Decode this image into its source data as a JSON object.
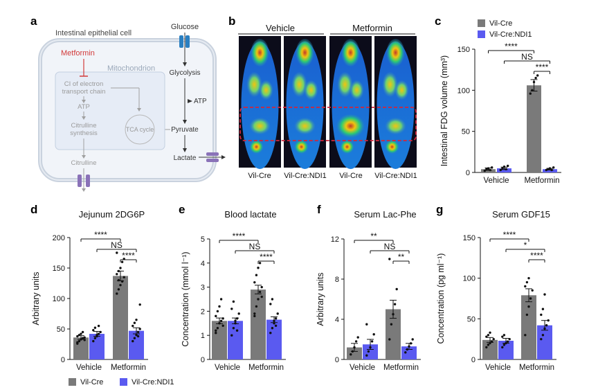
{
  "panel_labels": {
    "a": "a",
    "b": "b",
    "c": "c",
    "d": "d",
    "e": "e",
    "f": "f",
    "g": "g"
  },
  "colors": {
    "vil_cre": "#7a7a7a",
    "ndi1": "#5a5af0",
    "metformin_red": "#d23a3a",
    "schematic_grey": "#a0a0a0",
    "mito_fill": "#e6ecf6",
    "cell_fill": "#f1f4f9",
    "transporter_blue": "#2a7fc1",
    "transporter_purple": "#8a72b8"
  },
  "schematic": {
    "cell_label": "Intestinal epithelial cell",
    "glucose": "Glucose",
    "metformin": "Metformin",
    "mitochondrion": "Mitochondrion",
    "ci_line1": "CI of electron",
    "ci_line2": "transport chain",
    "atp_left": "ATP",
    "citrulline_syn_1": "Citrulline",
    "citrulline_syn_2": "synthesis",
    "citrulline": "Citrulline",
    "tca": "TCA cycle",
    "glycolysis": "Glycolysis",
    "atp_right": "ATP",
    "pyruvate": "Pyruvate",
    "lactate": "Lactate"
  },
  "pet": {
    "group_vehicle": "Vehicle",
    "group_metformin": "Metformin",
    "labels": [
      "Vil-Cre",
      "Vil-Cre:NDI1",
      "Vil-Cre",
      "Vil-Cre:NDI1"
    ]
  },
  "legend_top": [
    "Vil-Cre",
    "Vil-Cre:NDI1"
  ],
  "legend_bottom": [
    "Vil-Cre",
    "Vil-Cre:NDI1"
  ],
  "chart_data": [
    {
      "panel": "c",
      "type": "bar",
      "title": "",
      "categories": [
        "Vehicle",
        "Metformin"
      ],
      "ylabel": "Intestinal FDG volume (mm³)",
      "ylim": [
        0,
        150
      ],
      "yticks": [
        0,
        50,
        100,
        150
      ],
      "series": [
        {
          "name": "Vil-Cre",
          "values": [
            4,
            106
          ],
          "errors": [
            1.5,
            7
          ]
        },
        {
          "name": "Vil-Cre:NDI1",
          "values": [
            5,
            4
          ],
          "errors": [
            1.5,
            1
          ]
        }
      ],
      "points": [
        [
          [
            2,
            4,
            5,
            3,
            6
          ],
          [
            96,
            100,
            110,
            115,
            118
          ]
        ],
        [
          [
            3,
            5,
            7,
            4,
            8
          ],
          [
            3,
            4,
            5,
            3,
            6
          ]
        ]
      ],
      "significance": [
        {
          "from": 0,
          "to": 2,
          "level": 0,
          "label": "****"
        },
        {
          "from": 1,
          "to": 3,
          "level": 1,
          "label": "NS"
        },
        {
          "from": 2,
          "to": 3,
          "level": 2,
          "label": "****"
        }
      ]
    },
    {
      "panel": "d",
      "type": "bar",
      "title": "Jejunum 2DG6P",
      "categories": [
        "Vehicle",
        "Metformin"
      ],
      "ylabel": "Arbitrary units",
      "ylim": [
        0,
        200
      ],
      "yticks": [
        0,
        50,
        100,
        150,
        200
      ],
      "series": [
        {
          "name": "Vil-Cre",
          "values": [
            36,
            137
          ],
          "errors": [
            3,
            8
          ]
        },
        {
          "name": "Vil-Cre:NDI1",
          "values": [
            42,
            47
          ],
          "errors": [
            4,
            5
          ]
        }
      ],
      "points": [
        [
          [
            28,
            30,
            33,
            35,
            36,
            38,
            40,
            42,
            45,
            32,
            26
          ],
          [
            108,
            115,
            122,
            128,
            135,
            140,
            145,
            150,
            160,
            165,
            175,
            130
          ]
        ],
        [
          [
            30,
            35,
            38,
            42,
            45,
            48,
            52,
            40,
            55
          ],
          [
            30,
            35,
            40,
            45,
            50,
            55,
            60,
            65,
            38,
            90
          ]
        ]
      ],
      "significance": [
        {
          "from": 0,
          "to": 2,
          "level": 0,
          "label": "****"
        },
        {
          "from": 1,
          "to": 3,
          "level": 1,
          "label": "NS"
        },
        {
          "from": 2,
          "to": 3,
          "level": 2,
          "label": "****"
        }
      ]
    },
    {
      "panel": "e",
      "type": "bar",
      "title": "Blood lactate",
      "categories": [
        "Vehicle",
        "Metformin"
      ],
      "ylabel": "Concentration (mmol l⁻¹)",
      "ylim": [
        0,
        5
      ],
      "yticks": [
        0,
        1,
        2,
        3,
        4,
        5
      ],
      "series": [
        {
          "name": "Vil-Cre",
          "values": [
            1.6,
            2.9
          ],
          "errors": [
            0.12,
            0.18
          ]
        },
        {
          "name": "Vil-Cre:NDI1",
          "values": [
            1.6,
            1.65
          ],
          "errors": [
            0.12,
            0.12
          ]
        }
      ],
      "points": [
        [
          [
            1.1,
            1.3,
            1.5,
            1.6,
            1.7,
            1.8,
            2.0,
            2.2,
            2.5,
            1.4,
            1.2
          ],
          [
            1.8,
            2.2,
            2.5,
            2.8,
            3.0,
            3.2,
            3.5,
            3.8,
            4.0,
            2.6,
            1.9
          ]
        ],
        [
          [
            1.0,
            1.3,
            1.5,
            1.7,
            1.9,
            2.1,
            2.4,
            1.6,
            1.2
          ],
          [
            1.1,
            1.3,
            1.5,
            1.7,
            1.9,
            2.3,
            2.5,
            1.6,
            1.4
          ]
        ]
      ],
      "significance": [
        {
          "from": 0,
          "to": 2,
          "level": 0,
          "label": "****"
        },
        {
          "from": 1,
          "to": 3,
          "level": 1,
          "label": "NS"
        },
        {
          "from": 2,
          "to": 3,
          "level": 2,
          "label": "****"
        }
      ]
    },
    {
      "panel": "f",
      "type": "bar",
      "title": "Serum Lac-Phe",
      "categories": [
        "Vehicle",
        "Metformin"
      ],
      "ylabel": "Arbitrary units",
      "ylim": [
        0,
        12
      ],
      "yticks": [
        0,
        4,
        8,
        12
      ],
      "series": [
        {
          "name": "Vil-Cre",
          "values": [
            1.2,
            5.0
          ],
          "errors": [
            0.4,
            0.9
          ]
        },
        {
          "name": "Vil-Cre:NDI1",
          "values": [
            1.5,
            1.3
          ],
          "errors": [
            0.5,
            0.3
          ]
        }
      ],
      "points": [
        [
          [
            0.5,
            0.8,
            1.2,
            1.8,
            2.2
          ],
          [
            2.0,
            3.5,
            4.5,
            5.5,
            7.0,
            10.0
          ]
        ],
        [
          [
            0.4,
            0.8,
            1.2,
            1.8,
            2.5,
            3.5
          ],
          [
            0.7,
            1.0,
            1.3,
            1.6,
            2.0
          ]
        ]
      ],
      "significance": [
        {
          "from": 0,
          "to": 2,
          "level": 0,
          "label": "**"
        },
        {
          "from": 1,
          "to": 3,
          "level": 1,
          "label": "NS"
        },
        {
          "from": 2,
          "to": 3,
          "level": 2,
          "label": "**"
        }
      ]
    },
    {
      "panel": "g",
      "type": "bar",
      "title": "Serum GDF15",
      "categories": [
        "Vehicle",
        "Metformin"
      ],
      "ylabel": "Concentration (pg ml⁻¹)",
      "ylim": [
        0,
        150
      ],
      "yticks": [
        0,
        50,
        100,
        150
      ],
      "series": [
        {
          "name": "Vil-Cre",
          "values": [
            24,
            79
          ],
          "errors": [
            3,
            8
          ]
        },
        {
          "name": "Vil-Cre:NDI1",
          "values": [
            23,
            42
          ],
          "errors": [
            3,
            6
          ]
        }
      ],
      "points": [
        [
          [
            15,
            18,
            20,
            22,
            25,
            28,
            30,
            33
          ],
          [
            30,
            55,
            65,
            75,
            85,
            90,
            95,
            100
          ]
        ],
        [
          [
            15,
            18,
            20,
            22,
            25,
            28,
            30
          ],
          [
            25,
            30,
            38,
            42,
            48,
            55,
            62,
            80
          ]
        ]
      ],
      "significance": [
        {
          "from": 0,
          "to": 2,
          "level": 0,
          "label": "****"
        },
        {
          "from": 1,
          "to": 3,
          "level": 1,
          "label": "*"
        },
        {
          "from": 2,
          "to": 3,
          "level": 2,
          "label": "****"
        }
      ]
    }
  ]
}
